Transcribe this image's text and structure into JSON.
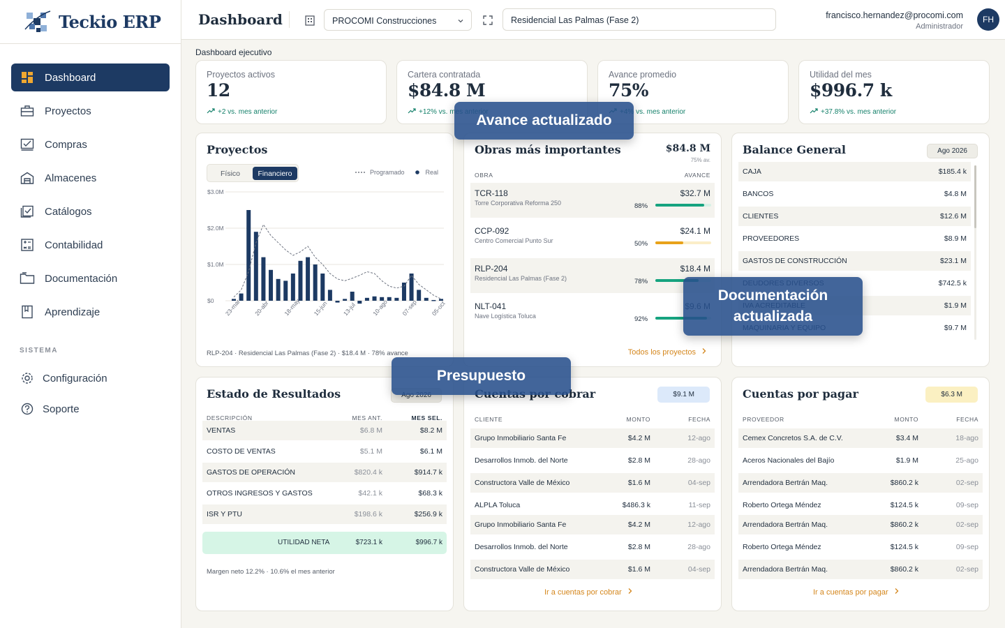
{
  "app": {
    "name": "Teckio ERP"
  },
  "sidebar": {
    "items": [
      {
        "label": "Dashboard",
        "icon": "dashboard-icon",
        "active": true
      },
      {
        "label": "Proyectos",
        "icon": "briefcase-icon"
      },
      {
        "label": "Compras",
        "icon": "cart-icon"
      },
      {
        "label": "Almacenes",
        "icon": "warehouse-icon"
      },
      {
        "label": "Catálogos",
        "icon": "catalog-icon"
      },
      {
        "label": "Contabilidad",
        "icon": "calculator-icon"
      },
      {
        "label": "Documentación",
        "icon": "folder-icon"
      },
      {
        "label": "Aprendizaje",
        "icon": "book-icon"
      }
    ],
    "section_label": "SISTEMA",
    "system_items": [
      {
        "label": "Configuración",
        "icon": "gear-icon"
      },
      {
        "label": "Soporte",
        "icon": "help-icon"
      }
    ]
  },
  "header": {
    "title": "Dashboard",
    "company": "PROCOMI Construcciones",
    "project": "Residencial Las Palmas (Fase 2)",
    "user_email": "francisco.hernandez@procomi.com",
    "user_role": "Administrador",
    "avatar_initials": "FH"
  },
  "exec_label": "Dashboard ejecutivo",
  "kpis": [
    {
      "label": "Proyectos activos",
      "value": "12",
      "delta": "+2 vs. mes anterior"
    },
    {
      "label": "Cartera contratada",
      "value": "$84.8 M",
      "delta": "+12% vs. mes anterior"
    },
    {
      "label": "Avance promedio",
      "value": "75%",
      "delta": "+4% vs. mes anterior"
    },
    {
      "label": "Utilidad del mes",
      "value": "$996.7 k",
      "delta": "+37.8% vs. mes anterior"
    }
  ],
  "proyectos": {
    "title": "Proyectos",
    "tabs": [
      "Físico",
      "Financiero"
    ],
    "active_tab": "Financiero",
    "legend_programado": "Programado",
    "legend_real": "Real",
    "footer": "RLP-204 · Residencial Las Palmas (Fase 2) · $18.4 M · 78% avance"
  },
  "chart_data": {
    "type": "bar",
    "y_ticks": [
      "$3.0M",
      "$2.0M",
      "$1.0M",
      "$0"
    ],
    "ylim": [
      0,
      3.0
    ],
    "x_tick_labels": [
      "23-mar",
      "20-abr",
      "18-may",
      "15-jun",
      "13-jul",
      "10-ago",
      "07-sep",
      "05-oct"
    ],
    "series": [
      {
        "name": "Real",
        "type": "bar",
        "values": [
          0.05,
          0.2,
          2.5,
          1.9,
          1.2,
          0.85,
          0.6,
          0.55,
          0.75,
          1.1,
          1.2,
          1.0,
          0.75,
          0.3,
          -0.05,
          0.05,
          0.25,
          -0.08,
          0.08,
          0.12,
          0.1,
          0.1,
          0.08,
          0.5,
          0.75,
          0.3,
          0.08,
          0.02,
          0.05
        ]
      },
      {
        "name": "Programado",
        "type": "line",
        "values": [
          0.1,
          0.3,
          0.8,
          1.6,
          2.1,
          1.8,
          1.6,
          1.4,
          1.25,
          1.35,
          1.5,
          1.2,
          1.0,
          0.75,
          0.6,
          0.55,
          0.62,
          0.7,
          0.8,
          0.75,
          0.55,
          0.4,
          0.35,
          0.4,
          0.7,
          0.45,
          0.3,
          0.15,
          0.05
        ]
      }
    ]
  },
  "obras": {
    "title": "Obras más importantes",
    "total": "$84.8 M",
    "total_sub": "75% av.",
    "col_obra": "OBRA",
    "col_avance": "AVANCE",
    "items": [
      {
        "code": "TCR-118",
        "name": "Torre Corporativa Reforma 250",
        "amount": "$32.7 M",
        "pct_label": "88%",
        "pct": 88,
        "color": "#16a37f"
      },
      {
        "code": "CCP-092",
        "name": "Centro Comercial Punto Sur",
        "amount": "$24.1 M",
        "pct_label": "50%",
        "pct": 50,
        "color": "#e8a21a"
      },
      {
        "code": "RLP-204",
        "name": "Residencial Las Palmas (Fase 2)",
        "amount": "$18.4 M",
        "pct_label": "78%",
        "pct": 78,
        "color": "#16a37f"
      },
      {
        "code": "NLT-041",
        "name": "Nave Logística Toluca",
        "amount": "$9.6 M",
        "pct_label": "92%",
        "pct": 92,
        "color": "#16a37f"
      }
    ],
    "link": "Todos los proyectos"
  },
  "balance": {
    "title": "Balance General",
    "period": "Ago 2026",
    "rows": [
      {
        "label": "CAJA",
        "value": "$185.4 k"
      },
      {
        "label": "BANCOS",
        "value": "$4.8 M"
      },
      {
        "label": "CLIENTES",
        "value": "$12.6 M"
      },
      {
        "label": "PROVEEDORES",
        "value": "$8.9 M"
      },
      {
        "label": "GASTOS DE CONSTRUCCIÓN",
        "value": "$23.1 M"
      },
      {
        "label": "DEUDORES DIVERSOS",
        "value": "$742.5 k"
      },
      {
        "label": "IVA ACREDITABLE",
        "value": "$1.9 M"
      },
      {
        "label": "MAQUINARIA Y EQUIPO",
        "value": "$9.7 M"
      }
    ]
  },
  "resultados": {
    "title": "Estado de Resultados",
    "period": "Ago 2026",
    "col_desc": "DESCRIPCIÓN",
    "col_prev": "MES ANT.",
    "col_sel": "MES SEL.",
    "rows": [
      {
        "label": "VENTAS",
        "prev": "$6.8 M",
        "sel": "$8.2 M"
      },
      {
        "label": "COSTO DE VENTAS",
        "prev": "$5.1 M",
        "sel": "$6.1 M"
      },
      {
        "label": "GASTOS DE OPERACIÓN",
        "prev": "$820.4 k",
        "sel": "$914.7 k"
      },
      {
        "label": "OTROS INGRESOS Y GASTOS",
        "prev": "$42.1 k",
        "sel": "$68.3 k"
      },
      {
        "label": "ISR Y PTU",
        "prev": "$198.6 k",
        "sel": "$256.9 k"
      }
    ],
    "total": {
      "label": "UTILIDAD NETA",
      "prev": "$723.1 k",
      "sel": "$996.7 k"
    },
    "footer": "Margen neto 12.2% · 10.6% el mes anterior"
  },
  "cobrar": {
    "title": "Cuentas por cobrar",
    "total": "$9.1 M",
    "col_cliente": "CLIENTE",
    "col_monto": "MONTO",
    "col_fecha": "FECHA",
    "rows": [
      {
        "name": "Grupo Inmobiliario Santa Fe",
        "amount": "$4.2 M",
        "date": "12-ago"
      },
      {
        "name": "Desarrollos Inmob. del Norte",
        "amount": "$2.8 M",
        "date": "28-ago"
      },
      {
        "name": "Constructora Valle de México",
        "amount": "$1.6 M",
        "date": "04-sep"
      },
      {
        "name": "ALPLA Toluca",
        "amount": "$486.3 k",
        "date": "11-sep"
      },
      {
        "name": "Grupo Inmobiliario Santa Fe",
        "amount": "$4.2 M",
        "date": "12-ago"
      },
      {
        "name": "Desarrollos Inmob. del Norte",
        "amount": "$2.8 M",
        "date": "28-ago"
      },
      {
        "name": "Constructora Valle de México",
        "amount": "$1.6 M",
        "date": "04-sep"
      }
    ],
    "link": "Ir a cuentas por cobrar"
  },
  "pagar": {
    "title": "Cuentas por pagar",
    "total": "$6.3 M",
    "col_proveedor": "PROVEEDOR",
    "col_monto": "MONTO",
    "col_fecha": "FECHA",
    "rows": [
      {
        "name": "Cemex Concretos S.A. de C.V.",
        "amount": "$3.4 M",
        "date": "18-ago"
      },
      {
        "name": "Aceros Nacionales del Bajío",
        "amount": "$1.9 M",
        "date": "25-ago"
      },
      {
        "name": "Arrendadora Bertrán Maq.",
        "amount": "$860.2 k",
        "date": "02-sep"
      },
      {
        "name": "Roberto Ortega Méndez",
        "amount": "$124.5 k",
        "date": "09-sep"
      },
      {
        "name": "Arrendadora Bertrán Maq.",
        "amount": "$860.2 k",
        "date": "02-sep"
      },
      {
        "name": "Roberto Ortega Méndez",
        "amount": "$124.5 k",
        "date": "09-sep"
      },
      {
        "name": "Arrendadora Bertrán Maq.",
        "amount": "$860.2 k",
        "date": "02-sep"
      }
    ],
    "link": "Ir a cuentas por pagar"
  },
  "overlays": {
    "avance": "Avance actualizado",
    "documentacion_line1": "Documentación",
    "documentacion_line2": "actualizada",
    "presupuesto": "Presupuesto"
  }
}
